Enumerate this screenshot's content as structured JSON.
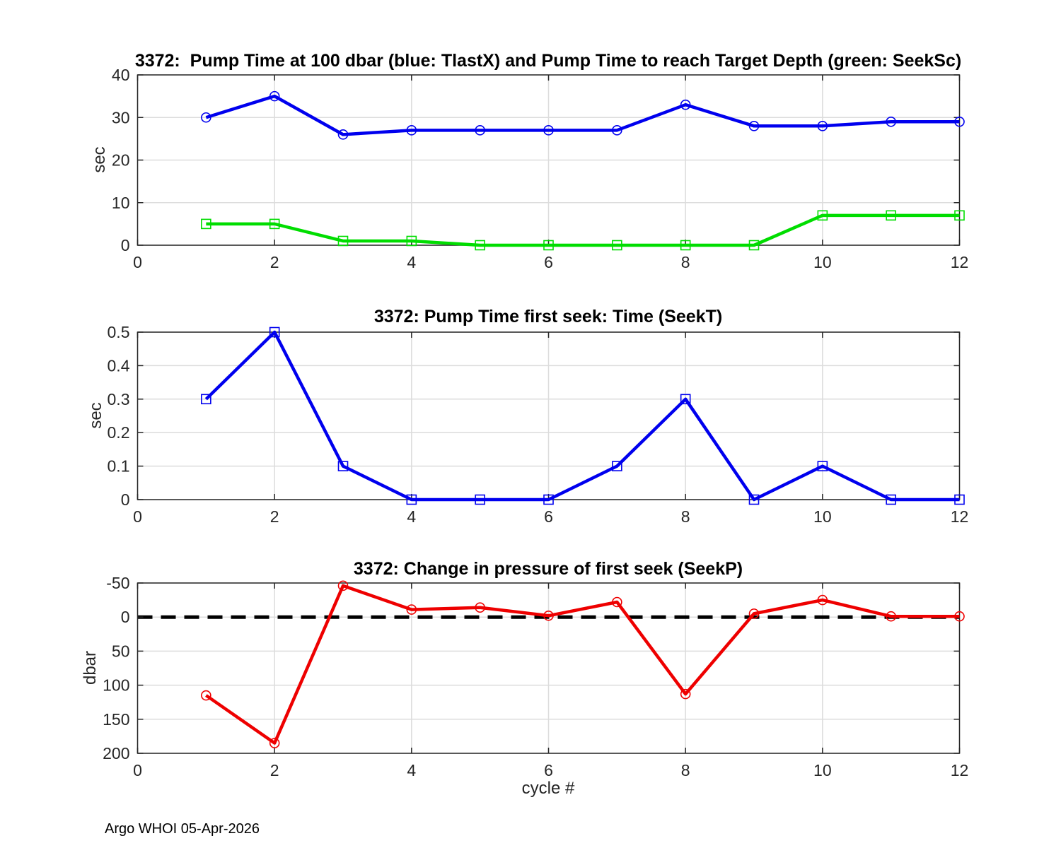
{
  "figure": {
    "footer": "Argo WHOI 05-Apr-2026"
  },
  "style": {
    "axis_color": "#262626",
    "grid_color": "#dcdcdc",
    "tick_label_color": "#262626",
    "zero_line_color": "#000000",
    "blue": "#0000EE",
    "green": "#00DD00",
    "red": "#EE0000"
  },
  "chart_data": [
    {
      "type": "line",
      "title": "3372:  Pump Time at 100 dbar (blue: TlastX) and Pump Time to reach Target Depth (green: SeekSc)",
      "ylabel": "sec",
      "xlabel": "",
      "x": [
        1,
        2,
        3,
        4,
        5,
        6,
        7,
        8,
        9,
        10,
        11,
        12
      ],
      "series": [
        {
          "name": "TlastX",
          "color": "#0000EE",
          "marker": "circle",
          "values": [
            30,
            35,
            26,
            27,
            27,
            27,
            27,
            33,
            28,
            28,
            29,
            29
          ]
        },
        {
          "name": "SeekSc",
          "color": "#00DD00",
          "marker": "square",
          "values": [
            5,
            5,
            1,
            1,
            0,
            0,
            0,
            0,
            0,
            7,
            7,
            7
          ]
        }
      ],
      "xlim": [
        0,
        12
      ],
      "ylim": [
        0,
        40
      ],
      "y_dir": "normal",
      "xticks": [
        0,
        2,
        4,
        6,
        8,
        10,
        12
      ],
      "yticks": [
        0,
        10,
        20,
        30,
        40
      ],
      "grid": true,
      "legend": "none"
    },
    {
      "type": "line",
      "title": "3372: Pump Time first seek: Time (SeekT)",
      "ylabel": "sec",
      "xlabel": "",
      "x": [
        1,
        2,
        3,
        4,
        5,
        6,
        7,
        8,
        9,
        10,
        11,
        12
      ],
      "series": [
        {
          "name": "SeekT",
          "color": "#0000EE",
          "marker": "square",
          "values": [
            0.3,
            0.5,
            0.1,
            0,
            0,
            0,
            0.1,
            0.3,
            0,
            0.1,
            0,
            0
          ]
        }
      ],
      "xlim": [
        0,
        12
      ],
      "ylim": [
        0,
        0.5
      ],
      "y_dir": "normal",
      "xticks": [
        0,
        2,
        4,
        6,
        8,
        10,
        12
      ],
      "yticks": [
        0,
        0.1,
        0.2,
        0.3,
        0.4,
        0.5
      ],
      "grid": true,
      "legend": "none"
    },
    {
      "type": "line",
      "title": "3372: Change in pressure of first seek (SeekP)",
      "ylabel": "dbar",
      "xlabel": "cycle #",
      "x": [
        1,
        2,
        3,
        4,
        5,
        6,
        7,
        8,
        9,
        10,
        11,
        12
      ],
      "series": [
        {
          "name": "SeekP",
          "color": "#EE0000",
          "marker": "circle",
          "values": [
            115,
            185,
            -46,
            -11,
            -14,
            -2,
            -22,
            113,
            -5,
            -25,
            -1,
            -1
          ]
        }
      ],
      "xlim": [
        0,
        12
      ],
      "ylim": [
        -50,
        200
      ],
      "y_dir": "reverse",
      "xticks": [
        0,
        2,
        4,
        6,
        8,
        10,
        12
      ],
      "yticks": [
        -50,
        0,
        50,
        100,
        150,
        200
      ],
      "grid": true,
      "legend": "none",
      "refline": {
        "y": 0,
        "style": "dashed",
        "color": "#000000"
      }
    }
  ]
}
